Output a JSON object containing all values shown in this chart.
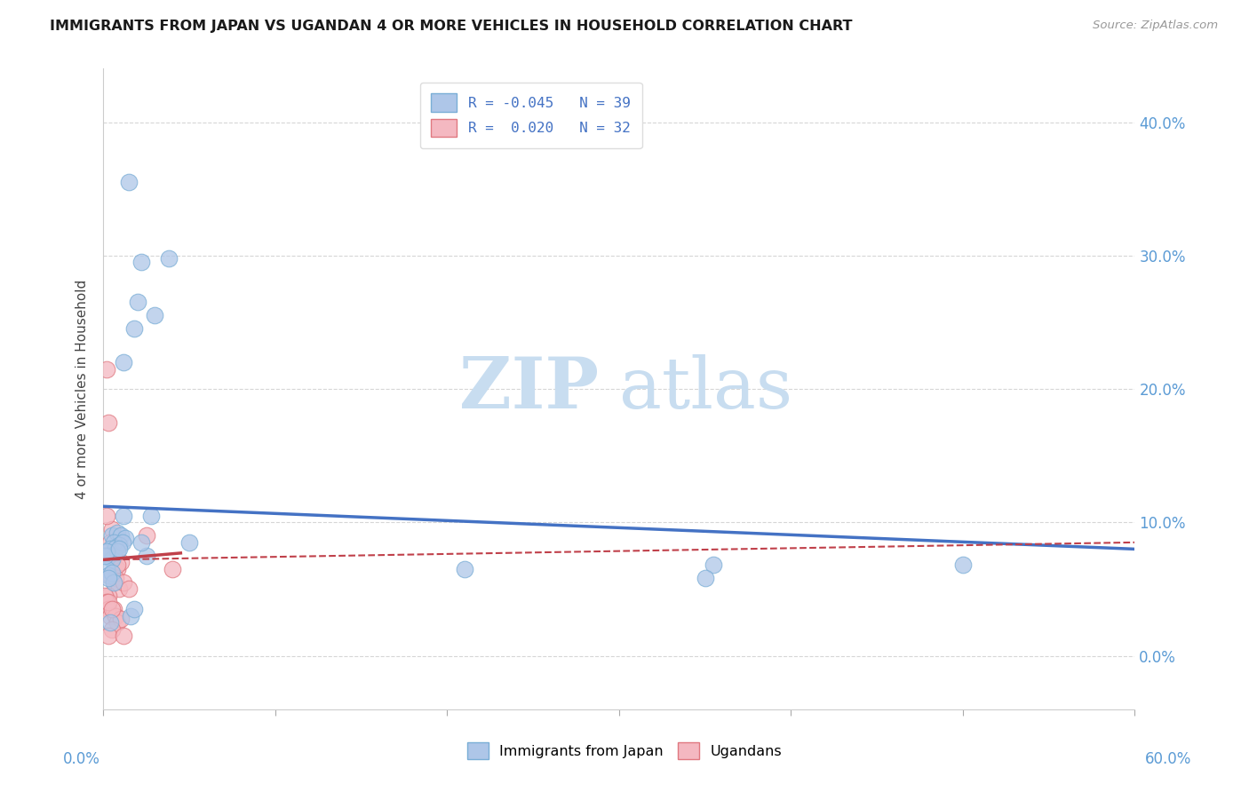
{
  "title": "IMMIGRANTS FROM JAPAN VS UGANDAN 4 OR MORE VEHICLES IN HOUSEHOLD CORRELATION CHART",
  "source": "Source: ZipAtlas.com",
  "ylabel": "4 or more Vehicles in Household",
  "yticks": [
    0.0,
    10.0,
    20.0,
    30.0,
    40.0
  ],
  "xtick_positions": [
    0.0,
    10.0,
    20.0,
    30.0,
    40.0,
    50.0,
    60.0
  ],
  "xlim": [
    0.0,
    60.0
  ],
  "ylim": [
    -4.0,
    44.0
  ],
  "legend_items": [
    {
      "label": "R = -0.045   N = 39",
      "color": "#aec6e8",
      "edge": "#7aaed6"
    },
    {
      "label": "R =  0.020   N = 32",
      "color": "#f4b8c1",
      "edge": "#e07880"
    }
  ],
  "bottom_legend": [
    {
      "label": "Immigrants from Japan",
      "color": "#aec6e8",
      "edge": "#7aaed6"
    },
    {
      "label": "Ugandans",
      "color": "#f4b8c1",
      "edge": "#e07880"
    }
  ],
  "japan_x": [
    1.5,
    2.2,
    3.8,
    3.0,
    2.0,
    1.8,
    1.2,
    0.5,
    0.8,
    1.0,
    1.3,
    0.6,
    0.9,
    0.4,
    0.7,
    1.1,
    0.3,
    0.5,
    0.8,
    0.2,
    0.3,
    0.5,
    0.4,
    1.6,
    1.8,
    5.0,
    2.5,
    21.0,
    35.5,
    50.0,
    35.0,
    0.1,
    0.2,
    0.9,
    1.2,
    2.8,
    2.2,
    0.6,
    0.3
  ],
  "japan_y": [
    35.5,
    29.5,
    29.8,
    25.5,
    26.5,
    24.5,
    22.0,
    9.0,
    9.2,
    9.0,
    8.8,
    8.5,
    8.3,
    8.0,
    8.1,
    8.5,
    7.5,
    7.2,
    7.8,
    6.5,
    6.0,
    6.2,
    2.5,
    3.0,
    3.5,
    8.5,
    7.5,
    6.5,
    6.8,
    6.8,
    5.8,
    7.5,
    7.8,
    8.0,
    10.5,
    10.5,
    8.5,
    5.5,
    5.8
  ],
  "uganda_x": [
    0.2,
    0.3,
    0.5,
    0.8,
    1.0,
    0.4,
    0.6,
    0.7,
    0.9,
    1.2,
    1.5,
    0.3,
    0.5,
    2.5,
    0.1,
    0.2,
    0.3,
    0.4,
    0.6,
    0.7,
    0.8,
    1.0,
    0.5,
    0.3,
    1.2,
    4.0,
    0.2,
    0.4,
    0.6,
    0.8,
    0.3,
    0.5
  ],
  "uganda_y": [
    21.5,
    17.5,
    7.5,
    6.5,
    7.0,
    6.0,
    5.5,
    5.8,
    5.0,
    5.5,
    5.0,
    4.5,
    9.5,
    9.0,
    4.5,
    4.0,
    3.5,
    3.0,
    3.5,
    3.0,
    2.5,
    2.8,
    2.0,
    1.5,
    1.5,
    6.5,
    10.5,
    8.5,
    7.5,
    6.8,
    4.0,
    3.5
  ],
  "japan_color": "#aec6e8",
  "japan_edge": "#7aaed6",
  "uganda_color": "#f4b8c1",
  "uganda_edge": "#e07880",
  "trend_japan_color": "#4472c4",
  "trend_uganda_color": "#c0404a",
  "background_color": "#ffffff",
  "grid_color": "#cccccc",
  "title_color": "#1a1a1a",
  "axis_label_color": "#5b9bd5",
  "axis_tick_color": "#5b9bd5",
  "watermark_zip": "ZIP",
  "watermark_atlas": "atlas",
  "watermark_color_zip": "#c8ddf0",
  "watermark_color_atlas": "#c8ddf0",
  "trend_japan_x0": 0.0,
  "trend_japan_y0": 11.2,
  "trend_japan_x1": 60.0,
  "trend_japan_y1": 8.0,
  "trend_uganda_x0": 0.0,
  "trend_uganda_y0": 7.2,
  "trend_uganda_x1": 60.0,
  "trend_uganda_y1": 8.5,
  "trend_uganda_solid_x0": 0.0,
  "trend_uganda_solid_y0": 7.2,
  "trend_uganda_solid_x1": 4.5,
  "trend_uganda_solid_y1": 7.7
}
